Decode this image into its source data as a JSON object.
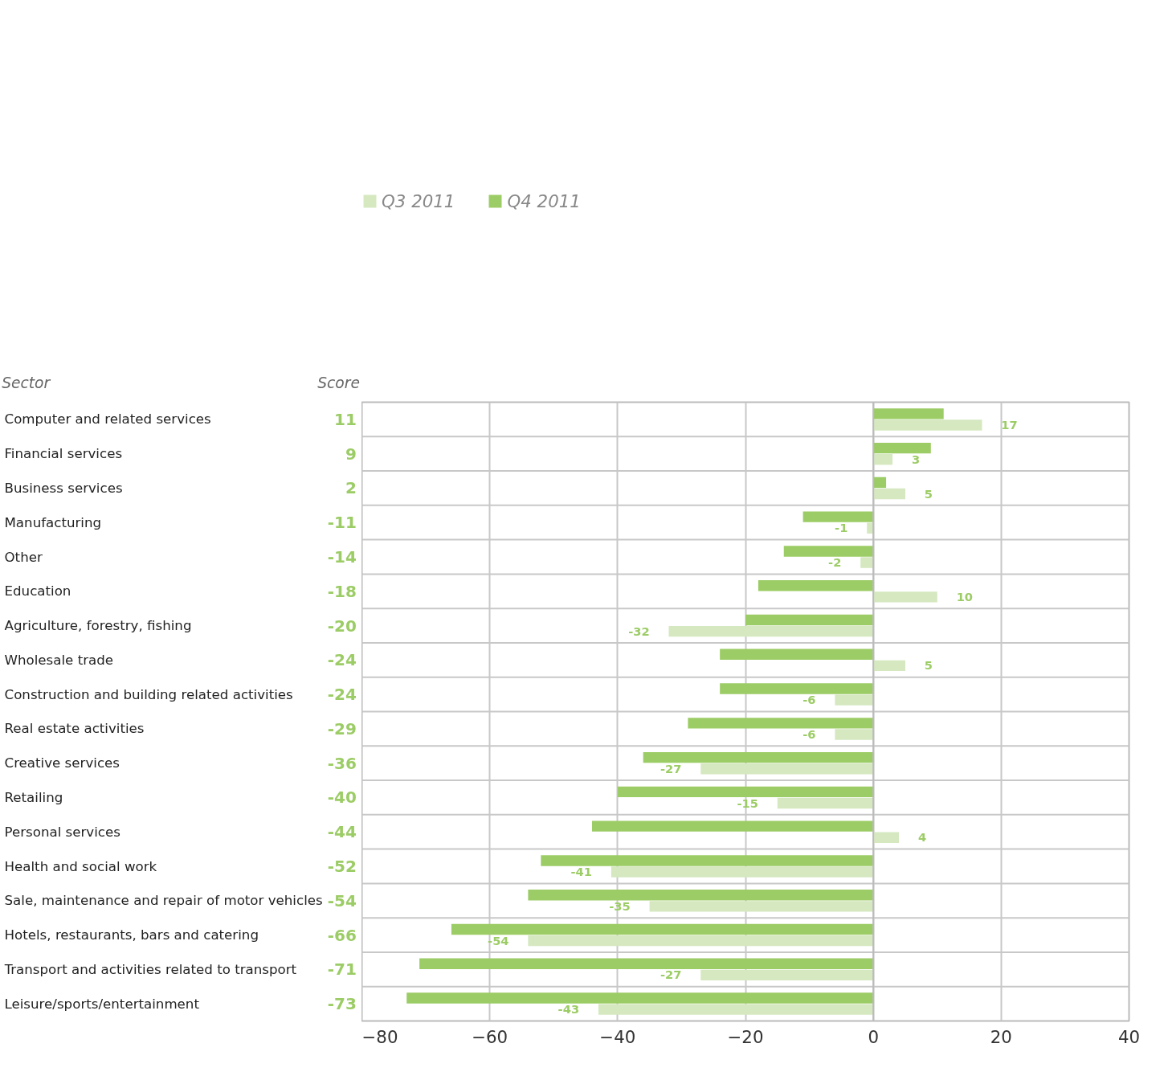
{
  "chart_data": {
    "type": "bar",
    "orientation": "horizontal",
    "ylabel": "Sector",
    "annotations": [
      "Score"
    ],
    "categories": [
      "Computer and related services",
      "Financial services",
      "Business services",
      "Manufacturing",
      "Other",
      "Education",
      "Agriculture, forestry, fishing",
      "Wholesale trade",
      "Construction and building related activities",
      "Real estate activities",
      "Creative services",
      "Retailing",
      "Personal services",
      "Health and social work",
      "Sale, maintenance and repair of motor vehicles",
      "Hotels, restaurants, bars and catering",
      "Transport and activities related to transport",
      "Leisure/sports/entertainment"
    ],
    "series": [
      {
        "name": "Q4 2011",
        "color": "#9ccc65",
        "values": [
          11,
          9,
          2,
          -11,
          -14,
          -18,
          -20,
          -24,
          -24,
          -29,
          -36,
          -40,
          -44,
          -52,
          -54,
          -66,
          -71,
          -73
        ]
      },
      {
        "name": "Q3 2011",
        "color": "#d5e8c0",
        "values": [
          17,
          3,
          5,
          -1,
          -2,
          10,
          -32,
          5,
          -6,
          -6,
          -27,
          -15,
          4,
          -41,
          -35,
          -54,
          -27,
          -43
        ]
      }
    ],
    "xlim": [
      -80,
      40
    ],
    "xticks": [
      -80,
      -60,
      -40,
      -20,
      0,
      20,
      40
    ],
    "grid": true,
    "legend": "top",
    "data_labels": true
  }
}
